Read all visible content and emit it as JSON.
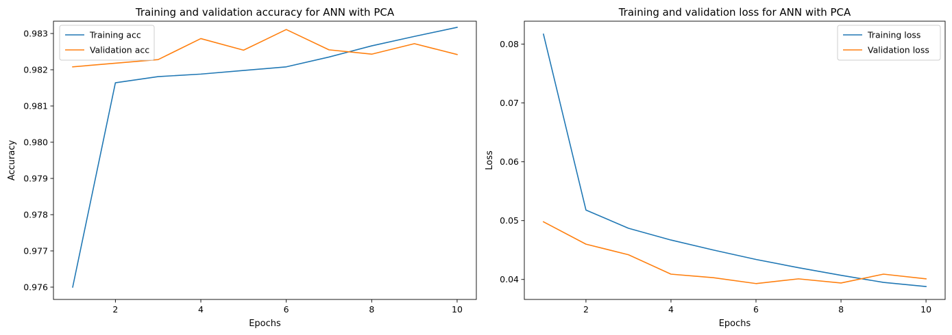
{
  "chart_data": [
    {
      "type": "line",
      "title": "Training and validation accuracy for ANN with PCA",
      "xlabel": "Epochs",
      "ylabel": "Accuracy",
      "x": [
        1,
        2,
        3,
        4,
        5,
        6,
        7,
        8,
        9,
        10
      ],
      "xlim": [
        0.55,
        10.45
      ],
      "ylim": [
        0.97566,
        0.98334
      ],
      "xticks": [
        2,
        4,
        6,
        8,
        10
      ],
      "xtick_labels": [
        "2",
        "4",
        "6",
        "8",
        "10"
      ],
      "yticks": [
        0.976,
        0.977,
        0.978,
        0.979,
        0.98,
        0.981,
        0.982,
        0.983
      ],
      "ytick_labels": [
        "0.976",
        "0.977",
        "0.978",
        "0.979",
        "0.980",
        "0.981",
        "0.982",
        "0.983"
      ],
      "legend_position": "upper-left",
      "series": [
        {
          "name": "Training acc",
          "color": "#1f77b4",
          "values": [
            0.976,
            0.98164,
            0.98181,
            0.98188,
            0.98198,
            0.98208,
            0.98235,
            0.98266,
            0.98292,
            0.98317
          ]
        },
        {
          "name": "Validation acc",
          "color": "#ff7f0e",
          "values": [
            0.98208,
            0.98218,
            0.98228,
            0.98286,
            0.98254,
            0.98311,
            0.98255,
            0.98243,
            0.98272,
            0.98242
          ]
        }
      ]
    },
    {
      "type": "line",
      "title": "Training and validation loss for ANN with PCA",
      "xlabel": "Epochs",
      "ylabel": "Loss",
      "x": [
        1,
        2,
        3,
        4,
        5,
        6,
        7,
        8,
        9,
        10
      ],
      "xlim": [
        0.55,
        10.45
      ],
      "ylim": [
        0.0366,
        0.0839
      ],
      "xticks": [
        2,
        4,
        6,
        8,
        10
      ],
      "xtick_labels": [
        "2",
        "4",
        "6",
        "8",
        "10"
      ],
      "yticks": [
        0.04,
        0.05,
        0.06,
        0.07,
        0.08
      ],
      "ytick_labels": [
        "0.04",
        "0.05",
        "0.06",
        "0.07",
        "0.08"
      ],
      "legend_position": "upper-right",
      "series": [
        {
          "name": "Training loss",
          "color": "#1f77b4",
          "values": [
            0.0817,
            0.0518,
            0.0487,
            0.0467,
            0.045,
            0.0434,
            0.042,
            0.0407,
            0.0395,
            0.0388
          ]
        },
        {
          "name": "Validation loss",
          "color": "#ff7f0e",
          "values": [
            0.0498,
            0.046,
            0.0442,
            0.0409,
            0.0403,
            0.0393,
            0.0401,
            0.0394,
            0.0409,
            0.0401
          ]
        }
      ]
    }
  ]
}
